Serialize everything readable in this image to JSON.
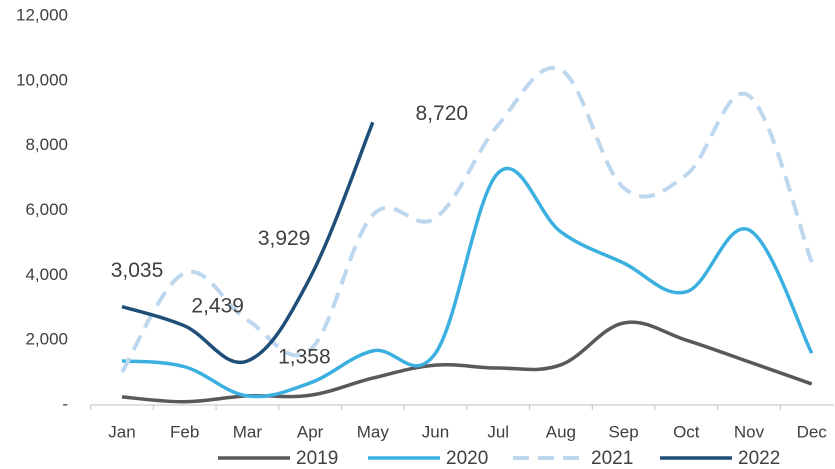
{
  "chart_data": {
    "type": "line",
    "categories": [
      "Jan",
      "Feb",
      "Mar",
      "Apr",
      "May",
      "Jun",
      "Jul",
      "Aug",
      "Sep",
      "Oct",
      "Nov",
      "Dec"
    ],
    "series": [
      {
        "name": "2019",
        "color": "#595959",
        "dashed": false,
        "values": [
          250,
          100,
          280,
          300,
          830,
          1230,
          1140,
          1240,
          2530,
          2000,
          1330,
          650
        ]
      },
      {
        "name": "2020",
        "color": "#3bb0e0",
        "dashed": false,
        "values": [
          1360,
          1180,
          280,
          680,
          1670,
          1600,
          7160,
          5340,
          4380,
          3490,
          5400,
          1600
        ]
      },
      {
        "name": "2021",
        "color": "#bdd7ee",
        "dashed": true,
        "values": [
          1020,
          4070,
          2620,
          1700,
          5860,
          5770,
          8640,
          10340,
          6700,
          7100,
          9540,
          4410
        ]
      },
      {
        "name": "2022",
        "color": "#1f4e79",
        "dashed": false,
        "values": [
          3035,
          2439,
          1358,
          3929,
          8720,
          null,
          null,
          null,
          null,
          null,
          null,
          null
        ],
        "value_labels": [
          "3,035",
          "2,439",
          "1,358",
          "3,929",
          "8,720",
          null,
          null,
          null,
          null,
          null,
          null,
          null
        ]
      }
    ],
    "ylim": [
      0,
      12000
    ],
    "yticks": [
      {
        "value": 0,
        "label": "-"
      },
      {
        "value": 2000,
        "label": "2,000"
      },
      {
        "value": 4000,
        "label": "4,000"
      },
      {
        "value": 6000,
        "label": "6,000"
      },
      {
        "value": 8000,
        "label": "8,000"
      },
      {
        "value": 10000,
        "label": "10,000"
      },
      {
        "value": 12000,
        "label": "12,000"
      }
    ],
    "grid": false,
    "legend": "bottom"
  }
}
